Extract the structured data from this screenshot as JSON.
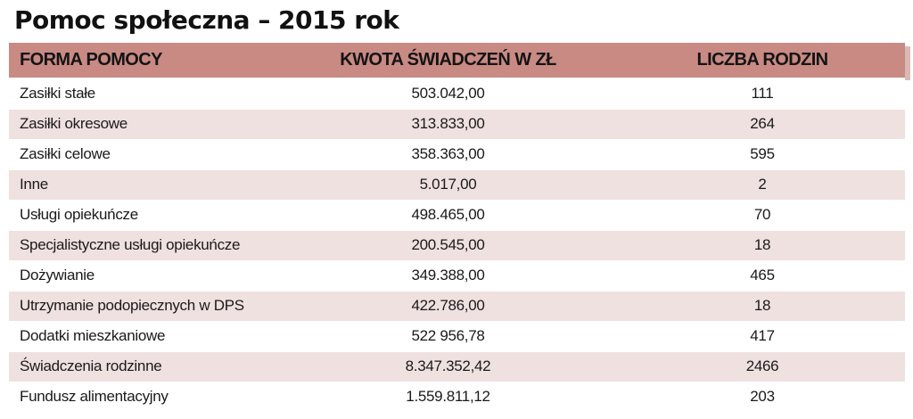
{
  "title": "Pomoc społeczna – 2015 rok",
  "table": {
    "headers": [
      "FORMA POMOCY",
      "KWOTA ŚWIADCZEŃ W ZŁ",
      "LICZBA RODZIN"
    ],
    "rows": [
      {
        "forma": "Zasiłki stałe",
        "kwota": "503.042,00",
        "rodziny": "111"
      },
      {
        "forma": "Zasiłki okresowe",
        "kwota": "313.833,00",
        "rodziny": "264"
      },
      {
        "forma": "Zasiłki celowe",
        "kwota": "358.363,00",
        "rodziny": "595"
      },
      {
        "forma": "Inne",
        "kwota": "5.017,00",
        "rodziny": "2"
      },
      {
        "forma": "Usługi opiekuńcze",
        "kwota": "498.465,00",
        "rodziny": "70"
      },
      {
        "forma": "Specjalistyczne usługi opiekuńcze",
        "kwota": "200.545,00",
        "rodziny": "18"
      },
      {
        "forma": "Dożywianie",
        "kwota": "349.388,00",
        "rodziny": "465"
      },
      {
        "forma": "Utrzymanie podopiecznych w DPS",
        "kwota": "422.786,00",
        "rodziny": "18"
      },
      {
        "forma": "Dodatki mieszkaniowe",
        "kwota": "522 956,78",
        "rodziny": "417"
      },
      {
        "forma": "Świadczenia rodzinne",
        "kwota": "8.347.352,42",
        "rodziny": "2466"
      },
      {
        "forma": "Fundusz alimentacyjny",
        "kwota": "1.559.811,12",
        "rodziny": "203"
      }
    ]
  },
  "colors": {
    "header_bg": "#c98a84",
    "stripe_bg": "#efe1df",
    "row_bg": "#ffffff"
  }
}
